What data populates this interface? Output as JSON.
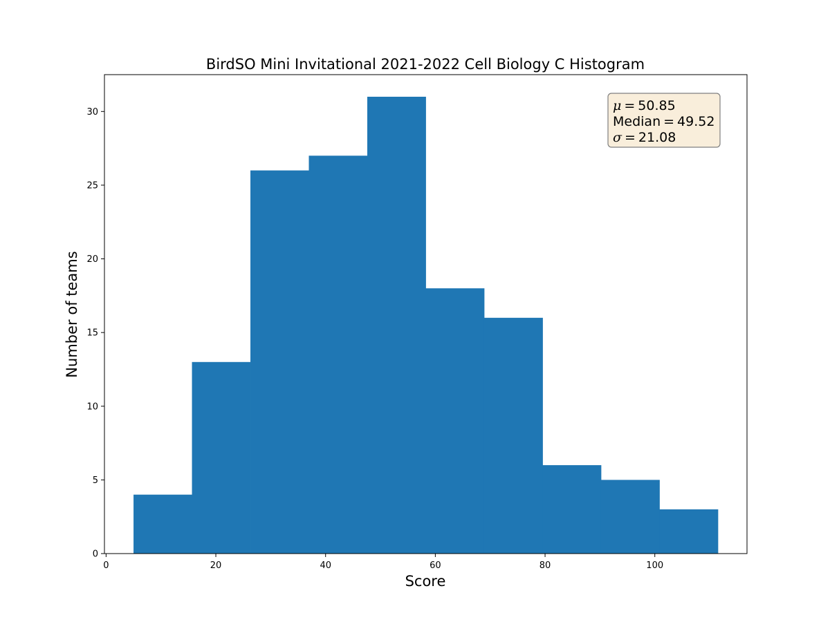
{
  "chart_data": {
    "type": "bar",
    "title": "BirdSO Mini Invitational 2021-2022 Cell Biology C Histogram",
    "xlabel": "Score",
    "ylabel": "Number of teams",
    "bins": [
      {
        "start": 5.0,
        "end": 15.65,
        "count": 4
      },
      {
        "start": 15.65,
        "end": 26.3,
        "count": 13
      },
      {
        "start": 26.3,
        "end": 36.95,
        "count": 26
      },
      {
        "start": 36.95,
        "end": 47.6,
        "count": 27
      },
      {
        "start": 47.6,
        "end": 58.25,
        "count": 31
      },
      {
        "start": 58.25,
        "end": 68.9,
        "count": 18
      },
      {
        "start": 68.9,
        "end": 79.55,
        "count": 16
      },
      {
        "start": 79.55,
        "end": 90.2,
        "count": 6
      },
      {
        "start": 90.2,
        "end": 100.85,
        "count": 5
      },
      {
        "start": 100.85,
        "end": 111.5,
        "count": 3
      }
    ],
    "xlim": [
      -0.3,
      116.8
    ],
    "ylim": [
      0,
      32.5
    ],
    "xticks": [
      0,
      20,
      40,
      60,
      80,
      100
    ],
    "yticks": [
      0,
      5,
      10,
      15,
      20,
      25,
      30
    ],
    "grid": false,
    "bar_color": "#1f77b4",
    "stats_box": {
      "placement": "top-right",
      "background": "#f9eedb",
      "border": "#7f7f7f",
      "mean_symbol": "μ",
      "mean_value": "50.85",
      "median_label": "Median",
      "median_value": "49.52",
      "sd_symbol": "σ",
      "sd_value": "21.08",
      "equals": "="
    }
  }
}
